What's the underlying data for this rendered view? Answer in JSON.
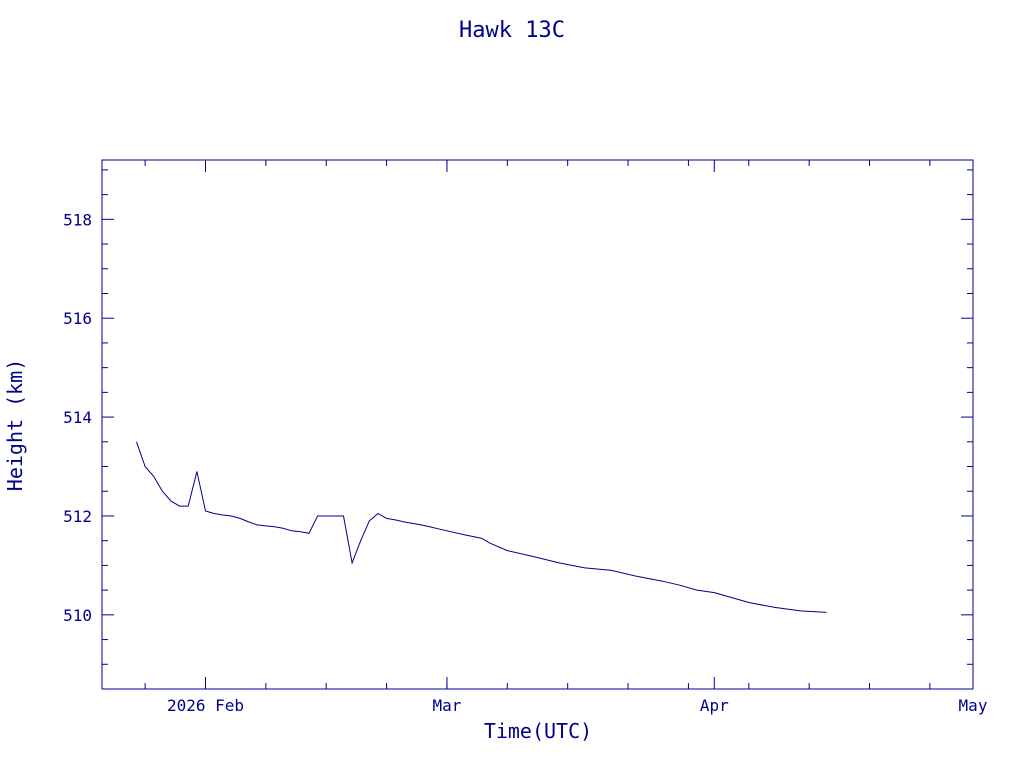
{
  "chart_data": {
    "type": "line",
    "title": "Hawk 13C",
    "xlabel": "Time(UTC)",
    "ylabel": "Height (km)",
    "x_axis_type": "date",
    "xlim": [
      "2026-01-20",
      "2026-05-01"
    ],
    "ylim": [
      508.5,
      519.2
    ],
    "x_tick_labels": [
      {
        "date": "2026-02-01",
        "label": "2026 Feb"
      },
      {
        "date": "2026-03-01",
        "label": "Mar"
      },
      {
        "date": "2026-04-01",
        "label": "Apr"
      },
      {
        "date": "2026-05-01",
        "label": "May"
      }
    ],
    "y_ticks": [
      510,
      512,
      514,
      516,
      518
    ],
    "grid": false,
    "line_color": "#00008b",
    "series": [
      {
        "x": [
          "2026-01-24",
          "2026-01-25",
          "2026-01-26",
          "2026-01-27",
          "2026-01-28",
          "2026-01-29",
          "2026-01-30",
          "2026-01-31",
          "2026-02-01",
          "2026-02-02",
          "2026-02-03",
          "2026-02-04",
          "2026-02-05",
          "2026-02-06",
          "2026-02-07",
          "2026-02-08",
          "2026-02-09",
          "2026-02-10",
          "2026-02-11",
          "2026-02-12",
          "2026-02-13",
          "2026-02-14",
          "2026-02-15",
          "2026-02-16",
          "2026-02-17",
          "2026-02-18",
          "2026-02-19",
          "2026-02-20",
          "2026-02-21",
          "2026-02-22",
          "2026-02-23",
          "2026-02-24",
          "2026-02-25",
          "2026-02-26",
          "2026-02-27",
          "2026-02-28",
          "2026-03-01",
          "2026-03-03",
          "2026-03-05",
          "2026-03-06",
          "2026-03-08",
          "2026-03-11",
          "2026-03-14",
          "2026-03-17",
          "2026-03-20",
          "2026-03-23",
          "2026-03-26",
          "2026-03-28",
          "2026-03-30",
          "2026-04-01",
          "2026-04-03",
          "2026-04-05",
          "2026-04-08",
          "2026-04-11",
          "2026-04-14"
        ],
        "values": [
          513.5,
          513.0,
          512.8,
          512.5,
          512.3,
          512.2,
          512.2,
          512.9,
          512.1,
          512.05,
          512.02,
          512.0,
          511.95,
          511.88,
          511.82,
          511.8,
          511.78,
          511.75,
          511.7,
          511.68,
          511.65,
          512.0,
          512.0,
          512.0,
          512.0,
          511.05,
          511.5,
          511.9,
          512.05,
          511.95,
          511.92,
          511.88,
          511.85,
          511.82,
          511.78,
          511.74,
          511.7,
          511.62,
          511.55,
          511.45,
          511.3,
          511.18,
          511.05,
          510.95,
          510.9,
          510.78,
          510.68,
          510.6,
          510.5,
          510.45,
          510.35,
          510.25,
          510.15,
          510.08,
          510.05
        ]
      }
    ]
  }
}
